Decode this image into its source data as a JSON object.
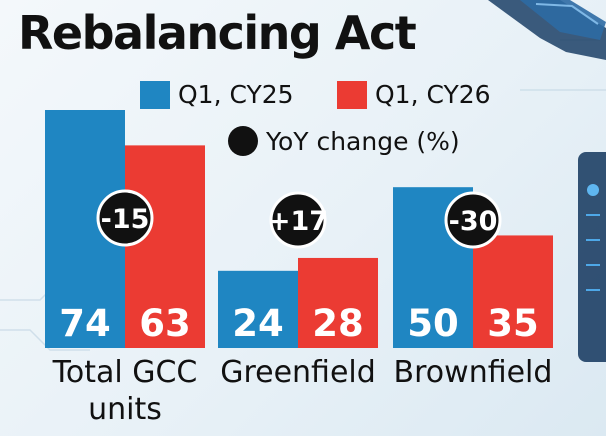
{
  "title": "Rebalancing Act",
  "legend": {
    "series1": "Q1, CY25",
    "series2": "Q1, CY26",
    "change": "YoY change (%)"
  },
  "colors": {
    "series1": "#1f86c2",
    "series2": "#eb3b33",
    "change_marker": "#111111"
  },
  "chart_data": {
    "type": "bar",
    "title": "Rebalancing Act",
    "categories": [
      [
        "Total GCC",
        "units"
      ],
      [
        "Greenfield"
      ],
      [
        "Brownfield"
      ]
    ],
    "series": [
      {
        "name": "Q1, CY25",
        "values": [
          74,
          24,
          50
        ]
      },
      {
        "name": "Q1, CY26",
        "values": [
          63,
          28,
          35
        ]
      }
    ],
    "yoy_change_labels": [
      "-15",
      "+17",
      "-30"
    ],
    "ylim": [
      0,
      74
    ],
    "grid": false,
    "legend_position": "top"
  }
}
